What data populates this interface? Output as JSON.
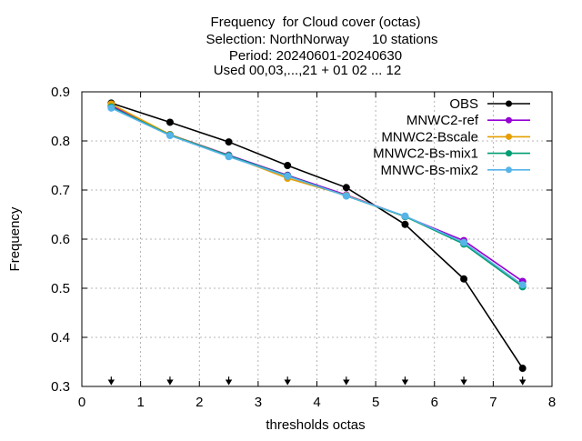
{
  "chart_data": {
    "type": "line",
    "title_lines": [
      "Frequency  for Cloud cover (octas)",
      "Selection: NorthNorway      10 stations",
      "Period: 20240601-20240630",
      "Used 00,03,...,21 + 01 02 ... 12"
    ],
    "xlabel": "thresholds octas",
    "ylabel": "Frequency",
    "xlim": [
      0,
      8
    ],
    "ylim": [
      0.3,
      0.9
    ],
    "xticks": [
      0,
      1,
      2,
      3,
      4,
      5,
      6,
      7,
      8
    ],
    "yticks": [
      0.3,
      0.4,
      0.5,
      0.6,
      0.7,
      0.8,
      0.9
    ],
    "grid": true,
    "legend_position": "top-right",
    "x": [
      0.5,
      1.5,
      2.5,
      3.5,
      4.5,
      5.5,
      6.5,
      7.5
    ],
    "series": [
      {
        "name": "OBS",
        "color": "#000000",
        "values": [
          0.877,
          0.838,
          0.798,
          0.75,
          0.705,
          0.63,
          0.519,
          0.337
        ]
      },
      {
        "name": "MNWC2-ref",
        "color": "#9400d3",
        "values": [
          0.872,
          0.813,
          0.771,
          0.73,
          0.69,
          0.646,
          0.597,
          0.514
        ]
      },
      {
        "name": "MNWC2-Bscale",
        "color": "#e69f00",
        "values": [
          0.875,
          0.813,
          0.77,
          0.724,
          0.689,
          0.646,
          0.593,
          0.506
        ]
      },
      {
        "name": "MNWC2-Bs-mix1",
        "color": "#009e73",
        "values": [
          0.869,
          0.812,
          0.77,
          0.729,
          0.688,
          0.646,
          0.59,
          0.503
        ]
      },
      {
        "name": "MNWC-Bs-mix2",
        "color": "#56b4e9",
        "values": [
          0.867,
          0.811,
          0.768,
          0.728,
          0.688,
          0.647,
          0.593,
          0.507
        ]
      }
    ],
    "arrow_markers_x": [
      0.5,
      1.5,
      2.5,
      3.5,
      4.5,
      5.5,
      6.5,
      7.5
    ]
  }
}
